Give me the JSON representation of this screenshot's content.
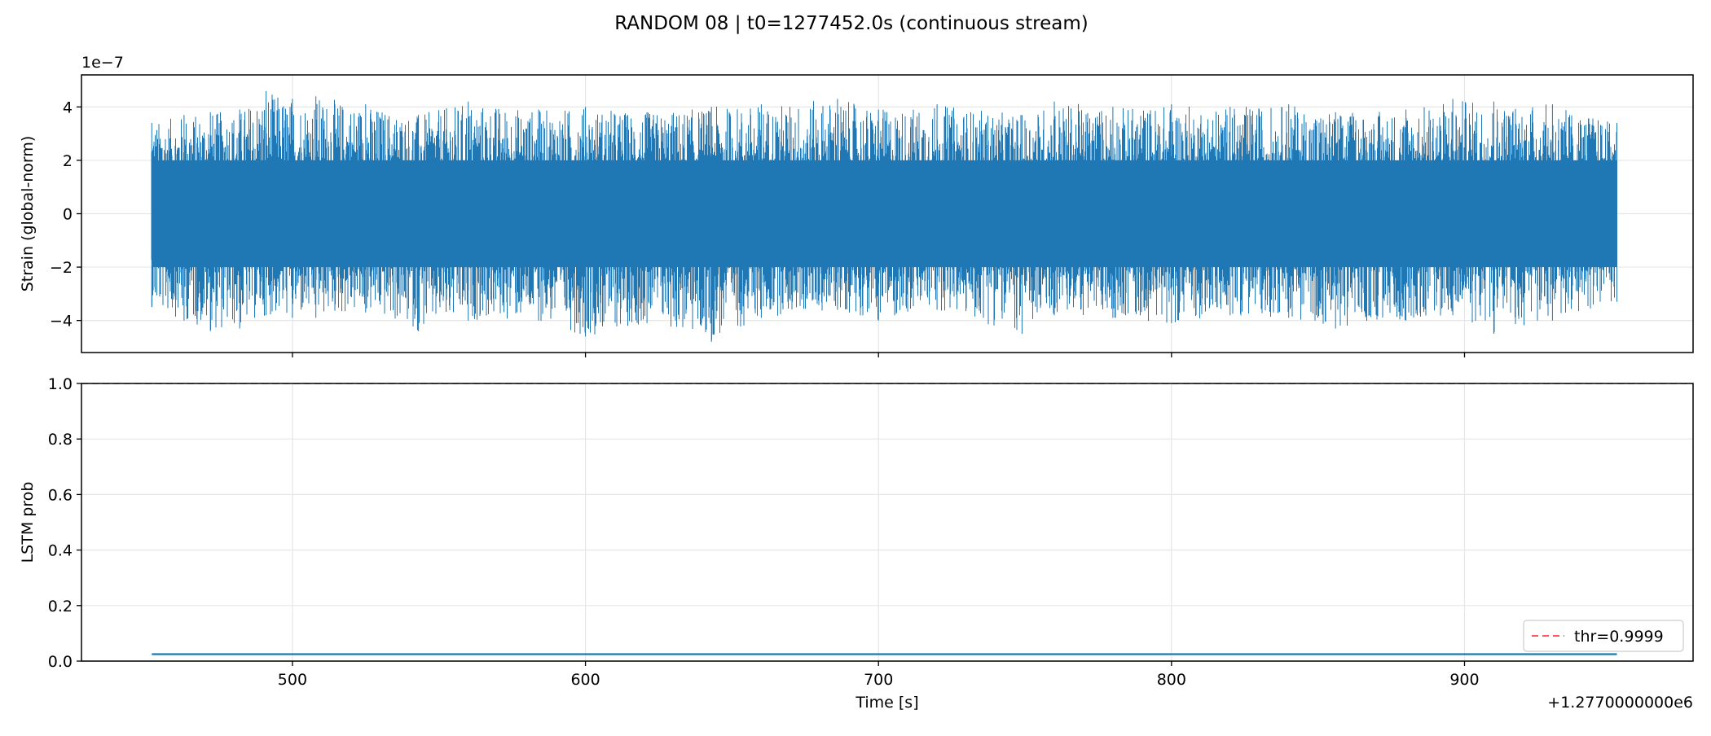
{
  "figure": {
    "title": "RANDOM 08 | t0=1277452.0s (continuous stream)"
  },
  "chart_data": [
    {
      "type": "line",
      "ylabel": "Strain (global-norm)",
      "xlabel": "",
      "xlim": [
        428,
        978
      ],
      "ylim": [
        -5.2,
        5.2
      ],
      "x_offset_label": "",
      "y_offset_label": "1e−7",
      "x_ticks": [
        500,
        600,
        700,
        800,
        900
      ],
      "x_tick_labels": [
        "",
        "",
        "",
        "",
        ""
      ],
      "y_ticks": [
        -4,
        -2,
        0,
        2,
        4
      ],
      "y_tick_labels": [
        "−4",
        "−2",
        "0",
        "2",
        "4"
      ],
      "grid": true,
      "series_color": "#1f77b4",
      "series": [
        {
          "name": "",
          "x_range": [
            452,
            952
          ],
          "envelope": [
            {
              "x": 452,
              "ymin": -3.5,
              "ymax": 3.4
            },
            {
              "x": 463,
              "ymin": -4.0,
              "ymax": 3.7
            },
            {
              "x": 472,
              "ymin": -4.4,
              "ymax": 3.8
            },
            {
              "x": 482,
              "ymin": -4.3,
              "ymax": 3.9
            },
            {
              "x": 491,
              "ymin": -3.8,
              "ymax": 4.6
            },
            {
              "x": 500,
              "ymin": -3.9,
              "ymax": 4.3
            },
            {
              "x": 508,
              "ymin": -3.9,
              "ymax": 4.4
            },
            {
              "x": 525,
              "ymin": -3.7,
              "ymax": 4.1
            },
            {
              "x": 543,
              "ymin": -4.4,
              "ymax": 3.7
            },
            {
              "x": 560,
              "ymin": -4.0,
              "ymax": 4.2
            },
            {
              "x": 584,
              "ymin": -4.0,
              "ymax": 3.9
            },
            {
              "x": 600,
              "ymin": -4.6,
              "ymax": 4.0
            },
            {
              "x": 621,
              "ymin": -4.1,
              "ymax": 3.8
            },
            {
              "x": 643,
              "ymin": -4.8,
              "ymax": 4.0
            },
            {
              "x": 660,
              "ymin": -3.9,
              "ymax": 4.1
            },
            {
              "x": 686,
              "ymin": -3.6,
              "ymax": 4.3
            },
            {
              "x": 700,
              "ymin": -4.0,
              "ymax": 3.9
            },
            {
              "x": 720,
              "ymin": -3.6,
              "ymax": 4.1
            },
            {
              "x": 749,
              "ymin": -4.5,
              "ymax": 3.7
            },
            {
              "x": 760,
              "ymin": -3.8,
              "ymax": 4.2
            },
            {
              "x": 780,
              "ymin": -3.9,
              "ymax": 4.0
            },
            {
              "x": 800,
              "ymin": -4.1,
              "ymax": 4.1
            },
            {
              "x": 820,
              "ymin": -3.8,
              "ymax": 4.0
            },
            {
              "x": 840,
              "ymin": -3.9,
              "ymax": 4.1
            },
            {
              "x": 856,
              "ymin": -4.3,
              "ymax": 3.8
            },
            {
              "x": 880,
              "ymin": -4.0,
              "ymax": 3.9
            },
            {
              "x": 896,
              "ymin": -3.8,
              "ymax": 4.3
            },
            {
              "x": 910,
              "ymin": -4.5,
              "ymax": 4.2
            },
            {
              "x": 930,
              "ymin": -4.0,
              "ymax": 4.1
            },
            {
              "x": 952,
              "ymin": -3.3,
              "ymax": 3.4
            }
          ],
          "core_band": [
            -2.0,
            2.0
          ]
        }
      ]
    },
    {
      "type": "line",
      "ylabel": "LSTM prob",
      "xlabel": "Time [s]",
      "xlim": [
        428,
        978
      ],
      "ylim": [
        0.0,
        1.0
      ],
      "x_offset_label": "+1.2770000000e6",
      "y_offset_label": "",
      "x_ticks": [
        500,
        600,
        700,
        800,
        900
      ],
      "x_tick_labels": [
        "500",
        "600",
        "700",
        "800",
        "900"
      ],
      "y_ticks": [
        0.0,
        0.2,
        0.4,
        0.6,
        0.8,
        1.0
      ],
      "y_tick_labels": [
        "0.0",
        "0.2",
        "0.4",
        "0.6",
        "0.8",
        "1.0"
      ],
      "grid": true,
      "series_color": "#1f77b4",
      "threshold": {
        "value": 0.9999,
        "label": "thr=0.9999",
        "color": "#ff5a5a",
        "style": "dashed"
      },
      "legend_position": "lower-right",
      "series": [
        {
          "name": "",
          "x": [
            452,
            952
          ],
          "y": [
            0.025,
            0.025
          ]
        }
      ]
    }
  ]
}
